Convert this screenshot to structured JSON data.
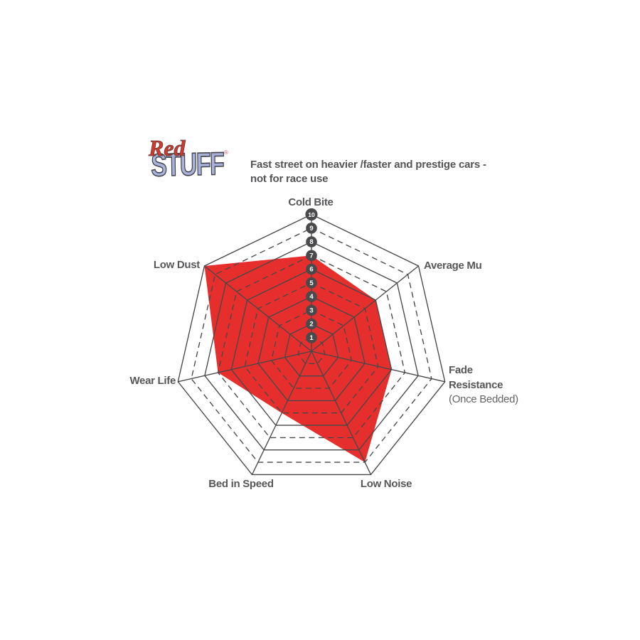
{
  "logo": {
    "red": "Red",
    "stuff": "STUFF",
    "registered": "®"
  },
  "tagline": {
    "line1": "Fast street on heavier /faster and prestige cars -",
    "line2": "not for race use"
  },
  "axis_labels": {
    "cold_bite": "Cold Bite",
    "average_mu": "Average Mu",
    "fade_line1": "Fade",
    "fade_line2": "Resistance",
    "fade_line3": "(Once Bedded)",
    "low_noise": "Low Noise",
    "bed_in_speed": "Bed in Speed",
    "wear_life": "Wear Life",
    "low_dust": "Low Dust"
  },
  "chart_data": {
    "type": "radar",
    "title": "Redstuff brake pad performance",
    "categories": [
      "Cold Bite",
      "Average Mu",
      "Fade Resistance (Once Bedded)",
      "Low Noise",
      "Bed in Speed",
      "Wear Life",
      "Low Dust"
    ],
    "series": [
      {
        "name": "Redstuff",
        "values": [
          7,
          6,
          6,
          9,
          5,
          7,
          10
        ]
      }
    ],
    "scale": {
      "min": 0,
      "max": 10,
      "ticks": [
        1,
        2,
        3,
        4,
        5,
        6,
        7,
        8,
        9,
        10
      ]
    },
    "grid": {
      "rings": 10,
      "solid_rings": "even",
      "dashed_rings": "odd",
      "spokes": 7
    },
    "legend_position": "none",
    "colors": {
      "fill": "#e62f2d",
      "grid": "#48484a",
      "badge_bg": "#4a4a4c",
      "badge_text": "#ffffff",
      "label": "#57575a",
      "logo_red": "#d8352b",
      "logo_blue": "#a9b2da"
    }
  }
}
